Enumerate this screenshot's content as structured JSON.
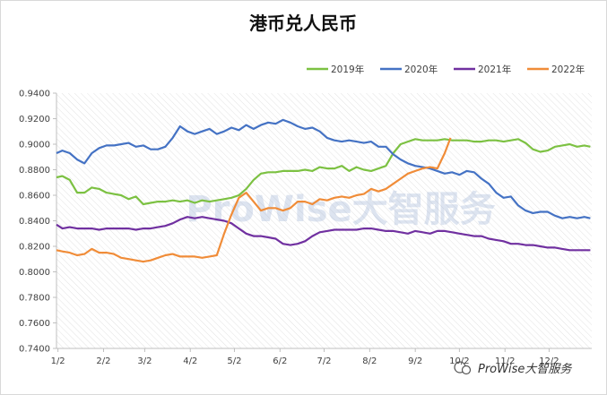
{
  "chart_data": {
    "type": "line",
    "title": "港币兑人民币",
    "watermark": "ProWise大智服务",
    "footer_brand": "ProWise大智服务",
    "xlabel": "",
    "ylabel": "",
    "ylim": [
      0.74,
      0.94
    ],
    "yticks": [
      "0.7400",
      "0.7600",
      "0.7800",
      "0.8000",
      "0.8200",
      "0.8400",
      "0.8600",
      "0.8800",
      "0.9000",
      "0.9200",
      "0.9400"
    ],
    "xticks": [
      "1/2",
      "2/2",
      "3/2",
      "4/2",
      "5/2",
      "6/2",
      "7/2",
      "8/2",
      "9/2",
      "10/2",
      "11/2",
      "12/2"
    ],
    "xlim": [
      1,
      365
    ],
    "grid": "diagonal-hatch",
    "legend_position": "top-right",
    "series": [
      {
        "name": "2019年",
        "color": "#7cc142",
        "x": [
          1,
          5,
          10,
          15,
          20,
          25,
          30,
          35,
          40,
          45,
          50,
          55,
          60,
          65,
          70,
          75,
          80,
          85,
          90,
          95,
          100,
          105,
          110,
          115,
          120,
          125,
          130,
          135,
          140,
          145,
          150,
          155,
          160,
          165,
          170,
          175,
          180,
          185,
          190,
          195,
          200,
          205,
          210,
          215,
          220,
          225,
          230,
          235,
          240,
          245,
          250,
          255,
          260,
          265,
          270,
          275,
          280,
          285,
          290,
          295,
          300,
          305,
          310,
          315,
          320,
          325,
          330,
          335,
          340,
          345,
          350,
          355,
          360,
          364
        ],
        "values": [
          0.874,
          0.875,
          0.872,
          0.862,
          0.862,
          0.866,
          0.865,
          0.862,
          0.861,
          0.86,
          0.857,
          0.859,
          0.853,
          0.854,
          0.855,
          0.855,
          0.856,
          0.855,
          0.856,
          0.854,
          0.856,
          0.855,
          0.856,
          0.857,
          0.858,
          0.86,
          0.865,
          0.872,
          0.877,
          0.878,
          0.878,
          0.879,
          0.879,
          0.879,
          0.88,
          0.879,
          0.882,
          0.881,
          0.881,
          0.883,
          0.879,
          0.882,
          0.88,
          0.879,
          0.881,
          0.883,
          0.893,
          0.9,
          0.902,
          0.904,
          0.903,
          0.903,
          0.903,
          0.904,
          0.903,
          0.903,
          0.903,
          0.902,
          0.902,
          0.903,
          0.903,
          0.902,
          0.903,
          0.904,
          0.901,
          0.896,
          0.894,
          0.895,
          0.898,
          0.899,
          0.9,
          0.898,
          0.899,
          0.898
        ]
      },
      {
        "name": "2020年",
        "color": "#4472c4",
        "x": [
          1,
          5,
          10,
          15,
          20,
          25,
          30,
          35,
          40,
          45,
          50,
          55,
          60,
          65,
          70,
          75,
          80,
          85,
          90,
          95,
          100,
          105,
          110,
          115,
          120,
          125,
          130,
          135,
          140,
          145,
          150,
          155,
          160,
          165,
          170,
          175,
          180,
          185,
          190,
          195,
          200,
          205,
          210,
          215,
          220,
          225,
          230,
          235,
          240,
          245,
          250,
          255,
          260,
          265,
          270,
          275,
          280,
          285,
          290,
          295,
          300,
          305,
          310,
          315,
          320,
          325,
          330,
          335,
          340,
          345,
          350,
          355,
          360,
          364
        ],
        "values": [
          0.893,
          0.895,
          0.893,
          0.888,
          0.885,
          0.893,
          0.897,
          0.899,
          0.899,
          0.9,
          0.901,
          0.898,
          0.899,
          0.896,
          0.896,
          0.898,
          0.905,
          0.914,
          0.91,
          0.908,
          0.91,
          0.912,
          0.908,
          0.91,
          0.913,
          0.911,
          0.915,
          0.912,
          0.915,
          0.917,
          0.916,
          0.919,
          0.917,
          0.914,
          0.912,
          0.913,
          0.91,
          0.905,
          0.903,
          0.902,
          0.903,
          0.902,
          0.901,
          0.902,
          0.898,
          0.898,
          0.892,
          0.888,
          0.885,
          0.883,
          0.882,
          0.881,
          0.879,
          0.877,
          0.878,
          0.876,
          0.879,
          0.878,
          0.873,
          0.869,
          0.862,
          0.858,
          0.859,
          0.852,
          0.848,
          0.846,
          0.847,
          0.847,
          0.844,
          0.842,
          0.843,
          0.842,
          0.843,
          0.842
        ]
      },
      {
        "name": "2021年",
        "color": "#7030a0",
        "x": [
          1,
          5,
          10,
          15,
          20,
          25,
          30,
          35,
          40,
          45,
          50,
          55,
          60,
          65,
          70,
          75,
          80,
          85,
          90,
          95,
          100,
          105,
          110,
          115,
          120,
          125,
          130,
          135,
          140,
          145,
          150,
          155,
          160,
          165,
          170,
          175,
          180,
          185,
          190,
          195,
          200,
          205,
          210,
          215,
          220,
          225,
          230,
          235,
          240,
          245,
          250,
          255,
          260,
          265,
          270,
          275,
          280,
          285,
          290,
          295,
          300,
          305,
          310,
          315,
          320,
          325,
          330,
          335,
          340,
          345,
          350,
          355,
          360,
          364
        ],
        "values": [
          0.837,
          0.834,
          0.835,
          0.834,
          0.834,
          0.834,
          0.833,
          0.834,
          0.834,
          0.834,
          0.834,
          0.833,
          0.834,
          0.834,
          0.835,
          0.836,
          0.838,
          0.841,
          0.843,
          0.842,
          0.843,
          0.842,
          0.841,
          0.84,
          0.838,
          0.834,
          0.83,
          0.828,
          0.828,
          0.827,
          0.826,
          0.822,
          0.821,
          0.822,
          0.824,
          0.828,
          0.831,
          0.832,
          0.833,
          0.833,
          0.833,
          0.833,
          0.834,
          0.834,
          0.833,
          0.832,
          0.832,
          0.831,
          0.83,
          0.832,
          0.831,
          0.83,
          0.832,
          0.832,
          0.831,
          0.83,
          0.829,
          0.828,
          0.828,
          0.826,
          0.825,
          0.824,
          0.822,
          0.822,
          0.821,
          0.821,
          0.82,
          0.819,
          0.819,
          0.818,
          0.817,
          0.817,
          0.817,
          0.817
        ]
      },
      {
        "name": "2022年",
        "color": "#f08c38",
        "x": [
          1,
          5,
          10,
          15,
          20,
          25,
          30,
          35,
          40,
          45,
          50,
          55,
          60,
          65,
          70,
          75,
          80,
          85,
          90,
          95,
          100,
          105,
          110,
          115,
          120,
          125,
          130,
          135,
          140,
          145,
          150,
          155,
          160,
          165,
          170,
          175,
          180,
          185,
          190,
          195,
          200,
          205,
          210,
          215,
          220,
          225,
          230,
          235,
          240,
          245,
          250,
          255,
          260,
          265,
          269
        ],
        "values": [
          0.817,
          0.816,
          0.815,
          0.813,
          0.814,
          0.818,
          0.815,
          0.815,
          0.814,
          0.811,
          0.81,
          0.809,
          0.808,
          0.809,
          0.811,
          0.813,
          0.814,
          0.812,
          0.812,
          0.812,
          0.811,
          0.812,
          0.813,
          0.83,
          0.845,
          0.858,
          0.862,
          0.855,
          0.848,
          0.85,
          0.85,
          0.848,
          0.85,
          0.855,
          0.855,
          0.853,
          0.857,
          0.856,
          0.858,
          0.859,
          0.858,
          0.86,
          0.861,
          0.865,
          0.863,
          0.865,
          0.869,
          0.873,
          0.877,
          0.879,
          0.881,
          0.882,
          0.881,
          0.893,
          0.905
        ]
      }
    ]
  }
}
